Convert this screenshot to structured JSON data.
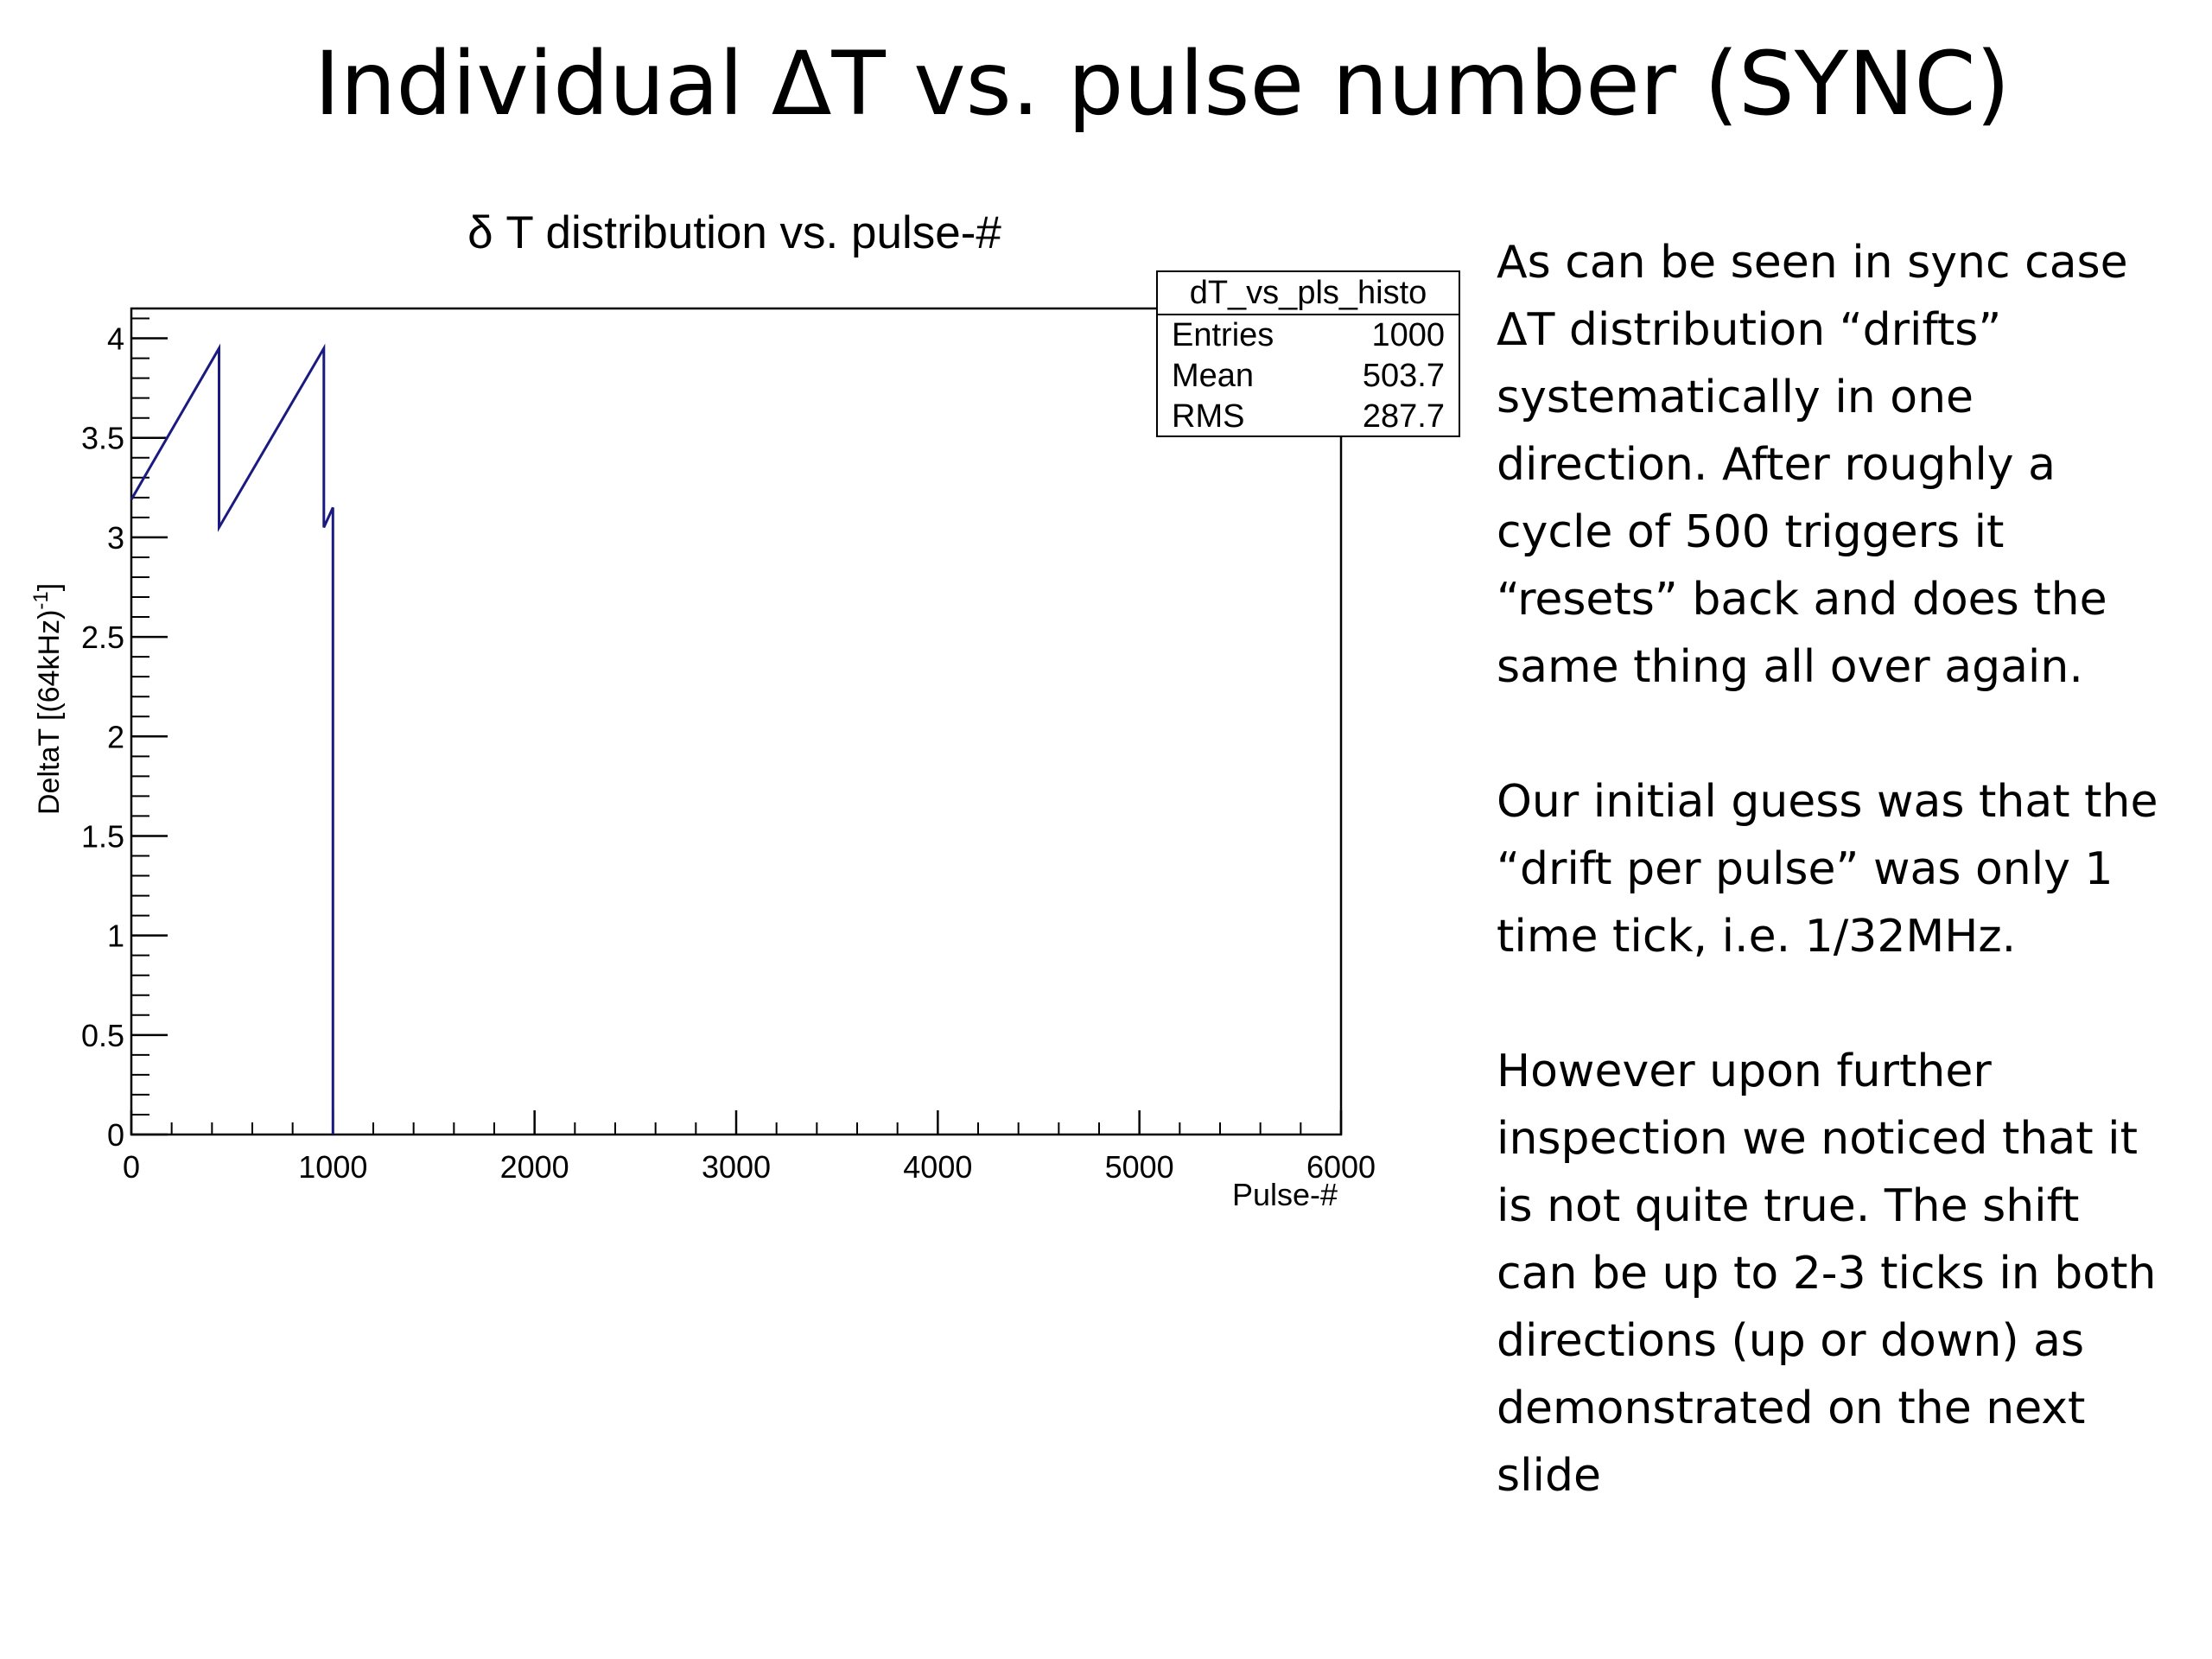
{
  "slide": {
    "title": "Individual ΔT vs. pulse number (SYNC)"
  },
  "notes": {
    "paragraphs": [
      "As can be seen in sync case\nΔT distribution “drifts”\nsystematically in one\ndirection. After roughly a\ncycle of 500 triggers it\n“resets” back and does the\nsame thing all over again.",
      "Our initial guess was that the\n“drift per pulse” was only 1\ntime tick, i.e. 1/32MHz.",
      "However upon further\ninspection we noticed that it\nis not quite true. The shift\ncan be up to 2-3 ticks in both\ndirections (up or down) as\ndemonstrated on the next\nslide"
    ]
  },
  "stats_box": {
    "title": "dT_vs_pls_histo",
    "rows": [
      {
        "label": "Entries",
        "value": "1000"
      },
      {
        "label": "Mean",
        "value": "503.7"
      },
      {
        "label": "RMS",
        "value": "287.7"
      }
    ]
  },
  "chart_data": {
    "type": "line",
    "title": "δ T distribution vs. pulse-#",
    "xlabel": "Pulse-#",
    "ylabel": "DeltaT [(64kHz)",
    "ylabel_superscript": "-1",
    "ylabel_suffix": "]",
    "xlim": [
      0,
      6000
    ],
    "ylim": [
      0,
      4.15
    ],
    "x_ticks": [
      0,
      1000,
      2000,
      3000,
      4000,
      5000,
      6000
    ],
    "x_tick_labels": [
      "0",
      "1000",
      "2000",
      "3000",
      "4000",
      "5000",
      "6000"
    ],
    "y_ticks": [
      0,
      0.5,
      1,
      1.5,
      2,
      2.5,
      3,
      3.5,
      4
    ],
    "y_tick_labels": [
      "0",
      "0.5",
      "1",
      "1.5",
      "2",
      "2.5",
      "3",
      "3.5",
      "4"
    ],
    "grid": false,
    "line_color": "#1a1a80",
    "series": [
      {
        "x": [
          0,
          435,
          435,
          955,
          955,
          1000,
          1000
        ],
        "y": [
          3.19,
          3.95,
          3.05,
          3.95,
          3.05,
          3.15,
          0
        ]
      }
    ]
  }
}
